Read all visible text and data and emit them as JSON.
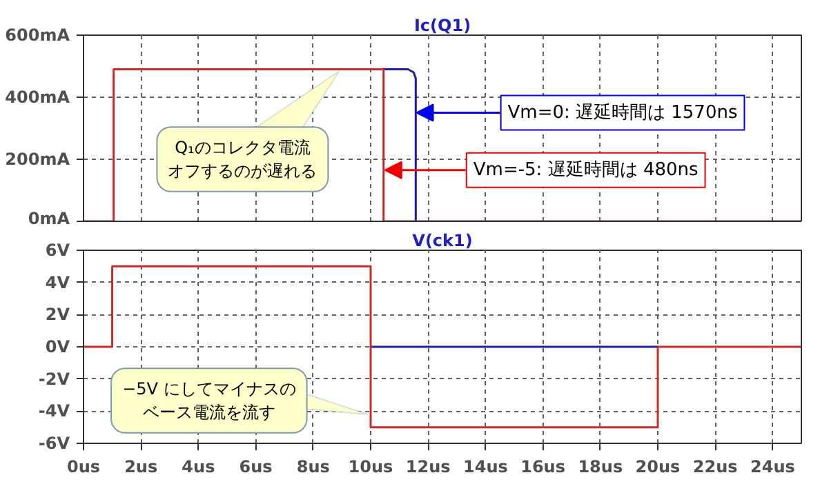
{
  "chart_data": [
    {
      "type": "line",
      "title": "Ic(Q1)",
      "xlim": [
        0,
        25
      ],
      "ylim": [
        0,
        600
      ],
      "xticks": [
        {
          "value": 0,
          "label": null
        },
        {
          "value": 2,
          "label": null
        },
        {
          "value": 4,
          "label": null
        },
        {
          "value": 6,
          "label": null
        },
        {
          "value": 8,
          "label": null
        },
        {
          "value": 10,
          "label": null
        },
        {
          "value": 12,
          "label": null
        },
        {
          "value": 14,
          "label": null
        },
        {
          "value": 16,
          "label": null
        },
        {
          "value": 18,
          "label": null
        },
        {
          "value": 20,
          "label": null
        },
        {
          "value": 22,
          "label": null
        },
        {
          "value": 24,
          "label": null
        }
      ],
      "yticks": [
        {
          "value": 0,
          "label": "0mA"
        },
        {
          "value": 200,
          "label": "200mA"
        },
        {
          "value": 400,
          "label": "400mA"
        },
        {
          "value": 600,
          "label": "600mA"
        }
      ],
      "tick_labels": "y",
      "grid": true,
      "series": [
        {
          "color": "#1c1ca8",
          "x": [
            10.45,
            11.3,
            11.5,
            11.57,
            11.57
          ],
          "values": [
            490,
            490,
            480,
            460,
            0
          ]
        },
        {
          "color": "#cc2a2a",
          "x": [
            0,
            1.05,
            1.05,
            10.45,
            10.45,
            25
          ],
          "values": [
            0,
            0,
            490,
            490,
            0,
            0
          ]
        }
      ],
      "annotations": [
        "Q₁のコレクタ電流オフするのが遅れる",
        {
          "text": "Vm=0: 遅延時間は 1570ns",
          "x": 11.6,
          "y": 350
        },
        {
          "text": "Vm=-5: 遅延時間は 480ns",
          "x": 10.5,
          "y": 165
        }
      ]
    },
    {
      "type": "line",
      "title": "V(ck1)",
      "xlim": [
        0,
        25
      ],
      "ylim": [
        -6,
        6
      ],
      "xticks": [
        {
          "value": 0,
          "label": "0us"
        },
        {
          "value": 2,
          "label": "2us"
        },
        {
          "value": 4,
          "label": "4us"
        },
        {
          "value": 6,
          "label": "6us"
        },
        {
          "value": 8,
          "label": "8us"
        },
        {
          "value": 10,
          "label": "10us"
        },
        {
          "value": 12,
          "label": "12us"
        },
        {
          "value": 14,
          "label": "14us"
        },
        {
          "value": 16,
          "label": "16us"
        },
        {
          "value": 18,
          "label": "18us"
        },
        {
          "value": 20,
          "label": "20us"
        },
        {
          "value": 22,
          "label": "22us"
        },
        {
          "value": 24,
          "label": "24us"
        }
      ],
      "yticks": [
        {
          "value": -6,
          "label": "-6V"
        },
        {
          "value": -4,
          "label": "-4V"
        },
        {
          "value": -2,
          "label": "-2V"
        },
        {
          "value": 0,
          "label": "0V"
        },
        {
          "value": 2,
          "label": "2V"
        },
        {
          "value": 4,
          "label": "4V"
        },
        {
          "value": 6,
          "label": "6V"
        }
      ],
      "grid": true,
      "series": [
        {
          "color": "#1c1ca8",
          "x": [
            10,
            20
          ],
          "values": [
            0,
            0
          ]
        },
        {
          "color": "#cc2a2a",
          "x": [
            0,
            1,
            1,
            10,
            10,
            20,
            20,
            25
          ],
          "values": [
            0,
            0,
            5,
            5,
            -5,
            -5,
            0,
            0
          ]
        }
      ],
      "annotations": [
        {
          "text": "−5V にしてマイナスのベース電流を流す",
          "x": 9.9,
          "y": -4.2
        }
      ]
    }
  ]
}
